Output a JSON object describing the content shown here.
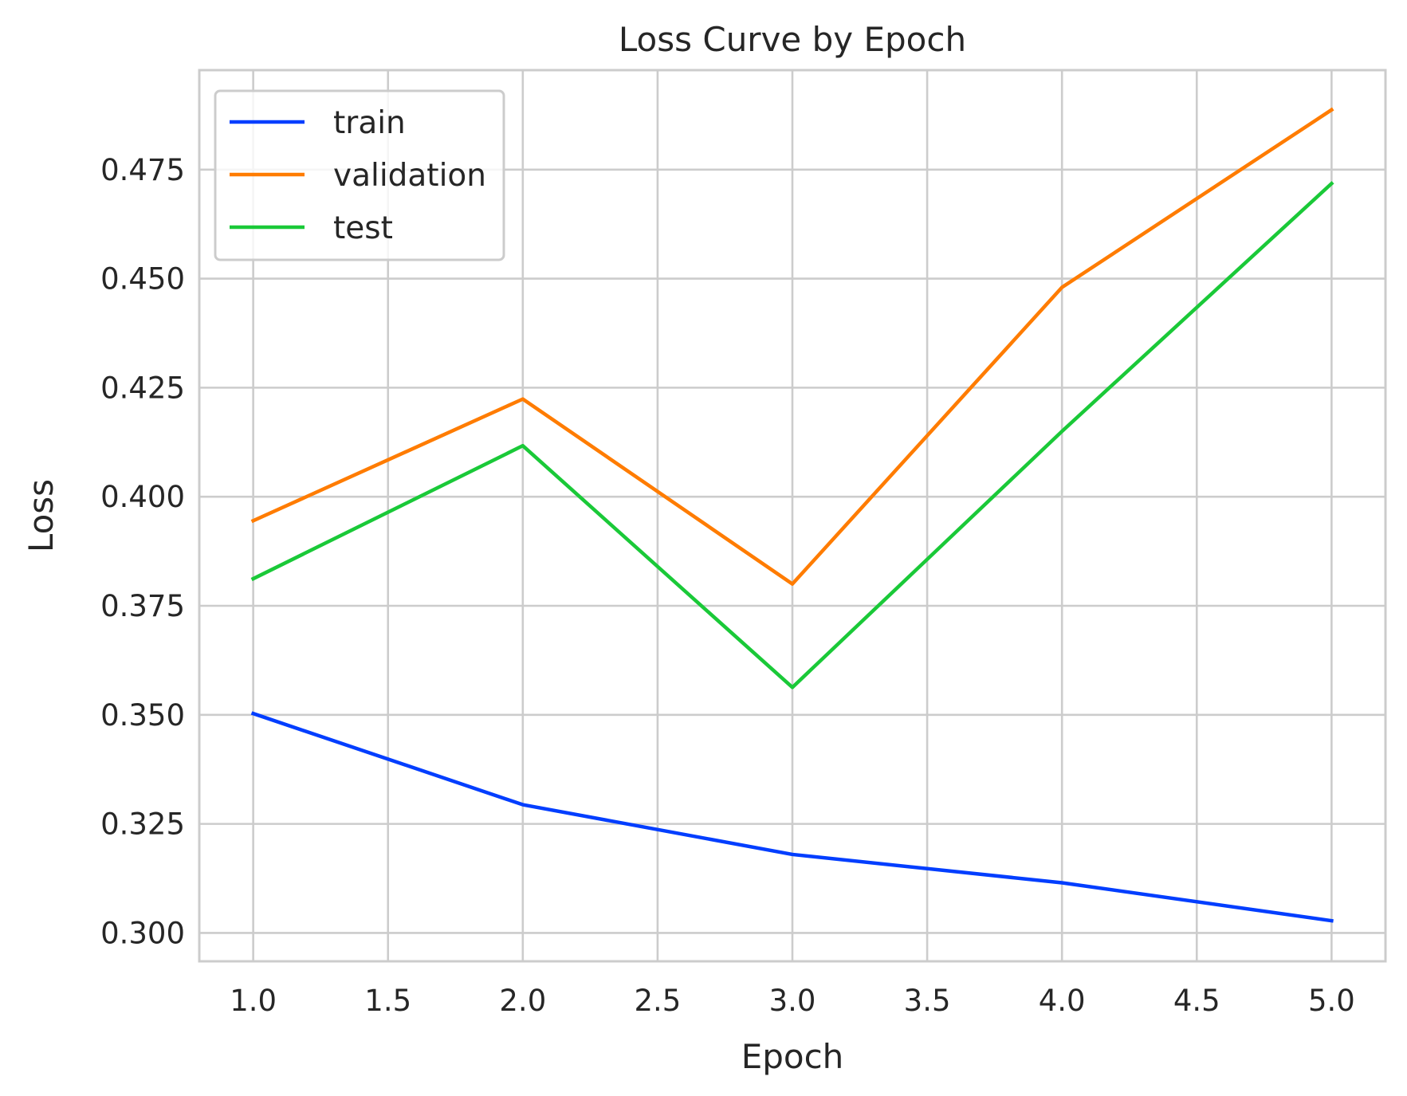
{
  "chart_data": {
    "type": "line",
    "title": "Loss Curve by Epoch",
    "xlabel": "Epoch",
    "ylabel": "Loss",
    "x": [
      1,
      2,
      3,
      4,
      5
    ],
    "series": [
      {
        "name": "train",
        "color": "#023eff",
        "values": [
          0.3503,
          0.3294,
          0.318,
          0.3115,
          0.3028
        ]
      },
      {
        "name": "validation",
        "color": "#ff7c00",
        "values": [
          0.3945,
          0.4224,
          0.38,
          0.448,
          0.4887
        ]
      },
      {
        "name": "test",
        "color": "#1ac938",
        "values": [
          0.3812,
          0.4117,
          0.3563,
          0.415,
          0.4718
        ]
      }
    ],
    "xlim": [
      0.8,
      5.2
    ],
    "ylim": [
      0.2935,
      0.4978
    ],
    "xticks": [
      "1.0",
      "1.5",
      "2.0",
      "2.5",
      "3.0",
      "3.5",
      "4.0",
      "4.5",
      "5.0"
    ],
    "yticks": [
      "0.300",
      "0.325",
      "0.350",
      "0.375",
      "0.400",
      "0.425",
      "0.450",
      "0.475"
    ],
    "grid": true,
    "legend_position": "upper-left"
  }
}
